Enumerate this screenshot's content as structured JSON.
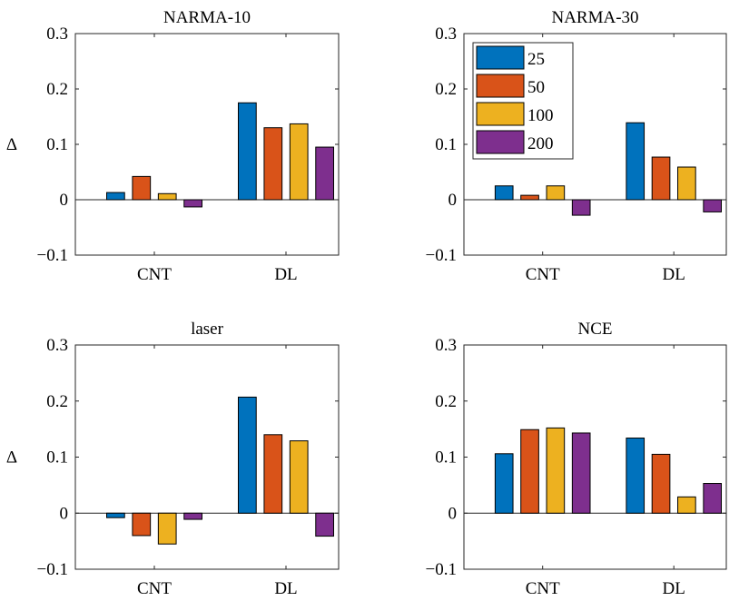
{
  "chart_data": [
    {
      "type": "bar",
      "title": "NARMA-10",
      "ylabel": "Δ",
      "categories": [
        "CNT",
        "DL"
      ],
      "ylim": [
        -0.1,
        0.3
      ],
      "yticks": [
        "−0.1",
        "0",
        "0.1",
        "0.2",
        "0.3"
      ],
      "series": [
        {
          "name": "25",
          "values": [
            0.013,
            0.175
          ]
        },
        {
          "name": "50",
          "values": [
            0.042,
            0.13
          ]
        },
        {
          "name": "100",
          "values": [
            0.011,
            0.137
          ]
        },
        {
          "name": "200",
          "values": [
            -0.013,
            0.095
          ]
        }
      ]
    },
    {
      "type": "bar",
      "title": "NARMA-30",
      "ylabel": "",
      "categories": [
        "CNT",
        "DL"
      ],
      "ylim": [
        -0.1,
        0.3
      ],
      "yticks": [
        "−0.1",
        "0",
        "0.1",
        "0.2",
        "0.3"
      ],
      "legend": "top-left",
      "series": [
        {
          "name": "25",
          "values": [
            0.025,
            0.139
          ]
        },
        {
          "name": "50",
          "values": [
            0.008,
            0.077
          ]
        },
        {
          "name": "100",
          "values": [
            0.025,
            0.059
          ]
        },
        {
          "name": "200",
          "values": [
            -0.028,
            -0.022
          ]
        }
      ]
    },
    {
      "type": "bar",
      "title": "laser",
      "ylabel": "Δ",
      "categories": [
        "CNT",
        "DL"
      ],
      "ylim": [
        -0.1,
        0.3
      ],
      "yticks": [
        "−0.1",
        "0",
        "0.1",
        "0.2",
        "0.3"
      ],
      "series": [
        {
          "name": "25",
          "values": [
            -0.008,
            0.207
          ]
        },
        {
          "name": "50",
          "values": [
            -0.04,
            0.14
          ]
        },
        {
          "name": "100",
          "values": [
            -0.055,
            0.129
          ]
        },
        {
          "name": "200",
          "values": [
            -0.011,
            -0.041
          ]
        }
      ]
    },
    {
      "type": "bar",
      "title": "NCE",
      "ylabel": "",
      "categories": [
        "CNT",
        "DL"
      ],
      "ylim": [
        -0.1,
        0.3
      ],
      "yticks": [
        "−0.1",
        "0",
        "0.1",
        "0.2",
        "0.3"
      ],
      "series": [
        {
          "name": "25",
          "values": [
            0.106,
            0.134
          ]
        },
        {
          "name": "50",
          "values": [
            0.149,
            0.105
          ]
        },
        {
          "name": "100",
          "values": [
            0.152,
            0.029
          ]
        },
        {
          "name": "200",
          "values": [
            0.143,
            0.053
          ]
        }
      ]
    }
  ],
  "colors": {
    "series": [
      "#0072BD",
      "#D95319",
      "#EDB120",
      "#7E2F8E"
    ],
    "axis": "#262626"
  }
}
